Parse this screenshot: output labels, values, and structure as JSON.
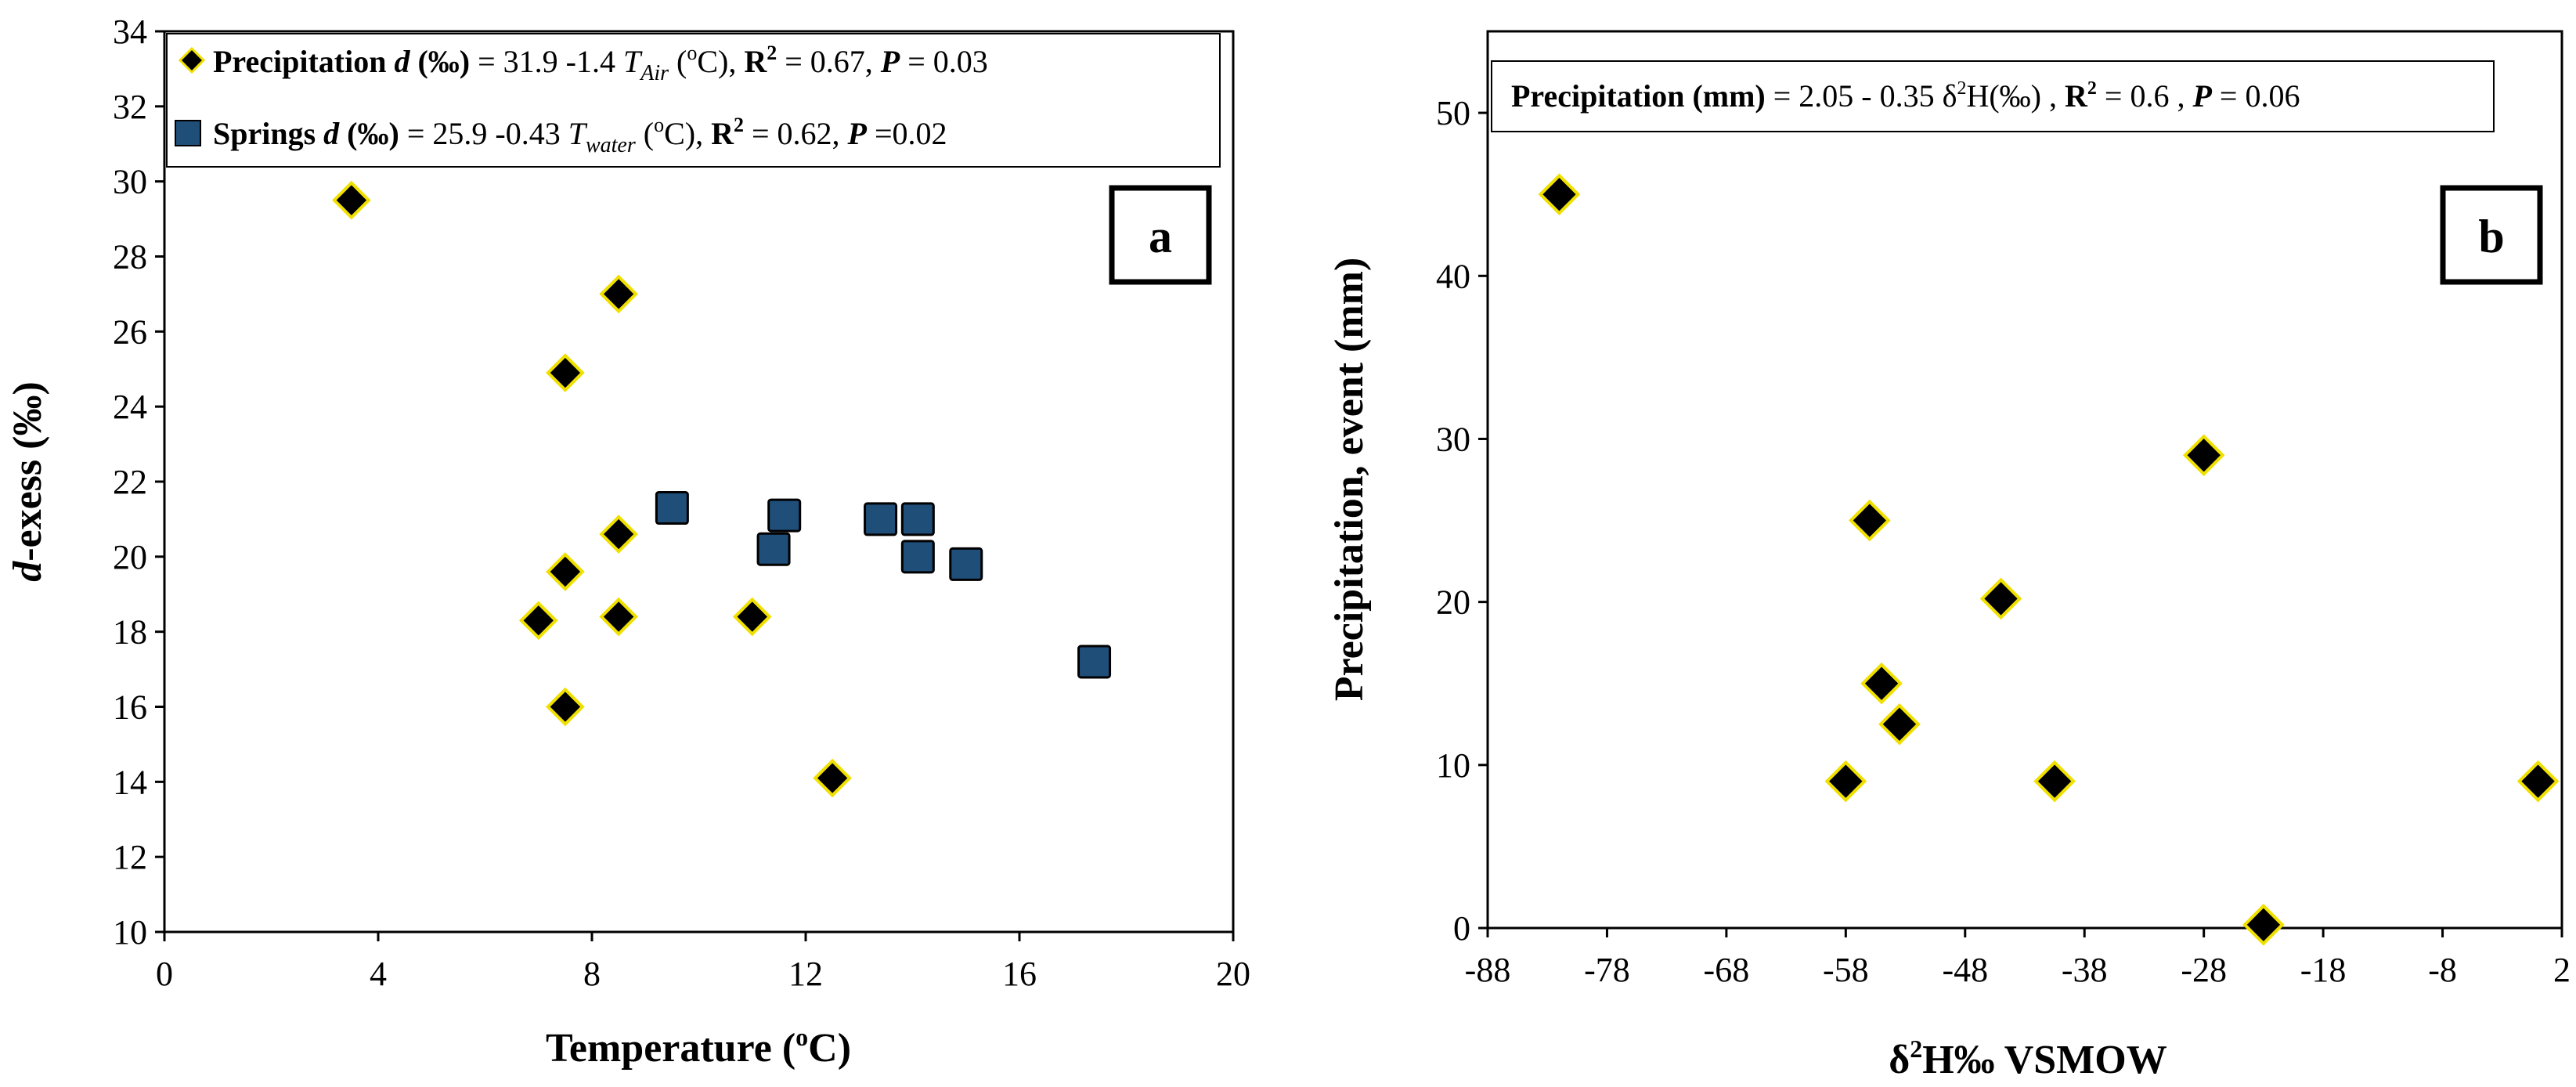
{
  "chart_data": [
    {
      "panel": "a",
      "type": "scatter",
      "xlabel": "Temperature (°C)",
      "xlabel_main": "Temperature (",
      "xlabel_sup": "o",
      "xlabel_tail": "C)",
      "ylabel": "d-exess (‰)",
      "ylabel_italic": "d",
      "ylabel_rest": "-exess (‰)",
      "xlim": [
        0,
        20
      ],
      "ylim": [
        10,
        34
      ],
      "xticks": [
        0,
        4,
        8,
        12,
        16,
        20
      ],
      "yticks": [
        10,
        12,
        14,
        16,
        18,
        20,
        22,
        24,
        26,
        28,
        30,
        32,
        34
      ],
      "legend": [
        {
          "name": "Precipitation",
          "symbol": "diamond",
          "equation_d": "d",
          "equation_unit": " (‰)",
          "equation_mid": " = 31.9 -1.4 ",
          "equation_T": "T",
          "equation_sub": "Air",
          "equation_unitC_pre": " (",
          "equation_unitC_sup": "o",
          "equation_unitC_post": "C), ",
          "equation_R": "R",
          "equation_R2": "2",
          "equation_Rval": " = 0.67, ",
          "equation_P": "P",
          "equation_Pval": "  = 0.03"
        },
        {
          "name": "Springs",
          "symbol": "square",
          "equation_d": "d",
          "equation_unit": " (‰)",
          "equation_mid": " = 25.9 -0.43 ",
          "equation_T": "T",
          "equation_sub": "water",
          "equation_unitC_pre": " (",
          "equation_unitC_sup": "o",
          "equation_unitC_post": "C), ",
          "equation_R": "R",
          "equation_R2": "2",
          "equation_Rval": " = 0.62, ",
          "equation_P": "P",
          "equation_Pval": " =0.02"
        }
      ],
      "series": [
        {
          "name": "Precipitation",
          "marker": "diamond",
          "color": "#000000",
          "edge": "#f0e000",
          "points": [
            [
              3.5,
              29.5
            ],
            [
              7.0,
              18.3
            ],
            [
              7.5,
              24.9
            ],
            [
              7.5,
              19.6
            ],
            [
              7.5,
              16.0
            ],
            [
              8.5,
              27.0
            ],
            [
              8.5,
              20.6
            ],
            [
              8.5,
              18.4
            ],
            [
              11.0,
              18.4
            ],
            [
              12.5,
              14.1
            ]
          ]
        },
        {
          "name": "Springs",
          "marker": "square",
          "color": "#1f4e79",
          "edge": "#000000",
          "points": [
            [
              9.5,
              21.3
            ],
            [
              11.4,
              20.2
            ],
            [
              11.6,
              21.1
            ],
            [
              13.4,
              21.0
            ],
            [
              14.1,
              21.0
            ],
            [
              14.1,
              20.0
            ],
            [
              15.0,
              19.8
            ],
            [
              17.4,
              17.2
            ]
          ]
        }
      ]
    },
    {
      "panel": "b",
      "type": "scatter",
      "xlabel": "δ²H‰ VSMOW",
      "xlabel_pre": "δ",
      "xlabel_sup": "2",
      "xlabel_tail": "H‰ VSMOW",
      "ylabel": "Precipitation, event (mm)",
      "xlim": [
        -88,
        2
      ],
      "ylim": [
        0,
        55
      ],
      "xticks": [
        -88,
        -78,
        -68,
        -58,
        -48,
        -38,
        -28,
        -18,
        -8,
        2
      ],
      "yticks": [
        0,
        10,
        20,
        30,
        40,
        50
      ],
      "legend": [
        {
          "name": "Precipitation (mm)",
          "eq_pre": " = 2.05 - 0.35 δ",
          "eq_sup": "2",
          "eq_mid": "H(‰) , ",
          "eq_R": "R",
          "eq_R2": "2",
          "eq_Rval": " = 0.6 , ",
          "eq_P": "P",
          "eq_Pval": " = 0.06"
        }
      ],
      "series": [
        {
          "name": "Precipitation",
          "marker": "diamond",
          "color": "#000000",
          "edge": "#f0e000",
          "points": [
            [
              -82,
              45
            ],
            [
              -56,
              25
            ],
            [
              -58,
              9
            ],
            [
              -55,
              15
            ],
            [
              -53.5,
              12.5
            ],
            [
              -45,
              20.2
            ],
            [
              -40.5,
              9
            ],
            [
              -28,
              29
            ],
            [
              -23,
              0.2
            ],
            [
              0,
              9
            ]
          ]
        }
      ]
    }
  ]
}
